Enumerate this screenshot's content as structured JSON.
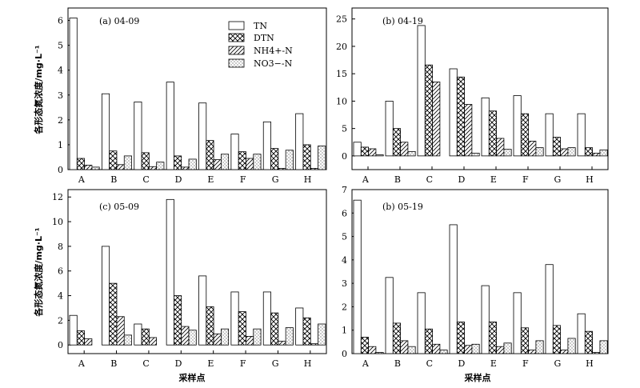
{
  "chart_data": [
    {
      "type": "bar",
      "title": "(a) 04-09",
      "categories": [
        "A",
        "B",
        "C",
        "D",
        "E",
        "F",
        "G",
        "H"
      ],
      "ylim": [
        0,
        6.5
      ],
      "yticks": [
        0,
        1,
        2,
        3,
        4,
        5,
        6
      ],
      "ylabel": "各形态氮浓度/mg·L⁻¹",
      "xlabel": "",
      "series": [
        {
          "name": "TN",
          "values": [
            6.1,
            3.05,
            2.72,
            3.52,
            2.68,
            1.43,
            1.92,
            2.25
          ]
        },
        {
          "name": "DTN",
          "values": [
            0.45,
            0.75,
            0.68,
            0.55,
            1.17,
            0.72,
            0.85,
            1.0
          ]
        },
        {
          "name": "NH4+-N",
          "values": [
            0.18,
            0.2,
            0.12,
            0.1,
            0.4,
            0.45,
            0.05,
            0.05
          ]
        },
        {
          "name": "NO3−-N",
          "values": [
            0.1,
            0.55,
            0.3,
            0.42,
            0.62,
            0.62,
            0.78,
            0.95
          ]
        }
      ]
    },
    {
      "type": "bar",
      "title": "(b) 04-19",
      "categories": [
        "A",
        "B",
        "C",
        "D",
        "E",
        "F",
        "G",
        "H"
      ],
      "ylim": [
        -2.5,
        27
      ],
      "yticks": [
        0,
        5,
        10,
        15,
        20,
        25
      ],
      "ylabel": "",
      "xlabel": "",
      "series": [
        {
          "name": "TN",
          "values": [
            2.5,
            10.0,
            23.8,
            15.9,
            10.6,
            11.0,
            7.7,
            7.7
          ]
        },
        {
          "name": "DTN",
          "values": [
            1.6,
            5.0,
            16.6,
            14.4,
            8.2,
            7.7,
            3.4,
            1.5
          ]
        },
        {
          "name": "NH4+-N",
          "values": [
            1.3,
            2.5,
            13.5,
            9.4,
            3.2,
            2.7,
            1.3,
            0.5
          ]
        },
        {
          "name": "NO3−-N",
          "values": [
            0.2,
            0.8,
            0.0,
            0.5,
            1.2,
            1.5,
            1.5,
            1.1
          ]
        }
      ]
    },
    {
      "type": "bar",
      "title": "(c) 05-09",
      "categories": [
        "A",
        "B",
        "C",
        "D",
        "E",
        "F",
        "G",
        "H"
      ],
      "ylim": [
        -0.7,
        12.6
      ],
      "yticks": [
        0,
        2,
        4,
        6,
        8,
        10,
        12
      ],
      "ylabel": "各形态氮浓度/mg·L⁻¹",
      "xlabel": "采样点",
      "series": [
        {
          "name": "TN",
          "values": [
            2.4,
            8.0,
            1.7,
            11.8,
            5.6,
            4.3,
            4.3,
            3.0
          ]
        },
        {
          "name": "DTN",
          "values": [
            1.15,
            5.0,
            1.3,
            4.0,
            3.1,
            2.7,
            2.6,
            2.2
          ]
        },
        {
          "name": "NH4+-N",
          "values": [
            0.5,
            2.3,
            0.6,
            1.5,
            0.9,
            0.7,
            0.3,
            0.1
          ]
        },
        {
          "name": "NO3−-N",
          "values": [
            0.0,
            0.8,
            0.0,
            1.2,
            1.3,
            1.3,
            1.4,
            1.7
          ]
        }
      ]
    },
    {
      "type": "bar",
      "title": "(b) 05-19",
      "categories": [
        "A",
        "B",
        "C",
        "D",
        "E",
        "F",
        "G",
        "H"
      ],
      "ylim": [
        0,
        7
      ],
      "yticks": [
        0,
        1,
        2,
        3,
        4,
        5,
        6,
        7
      ],
      "ylabel": "",
      "xlabel": "采样点",
      "series": [
        {
          "name": "TN",
          "values": [
            6.55,
            3.25,
            2.6,
            5.5,
            2.9,
            2.6,
            3.8,
            1.7
          ]
        },
        {
          "name": "DTN",
          "values": [
            0.7,
            1.3,
            1.05,
            1.35,
            1.35,
            1.1,
            1.2,
            0.95
          ]
        },
        {
          "name": "NH4+-N",
          "values": [
            0.3,
            0.55,
            0.4,
            0.35,
            0.3,
            0.15,
            0.15,
            0.05
          ]
        },
        {
          "name": "NO3−-N",
          "values": [
            0.05,
            0.3,
            0.15,
            0.4,
            0.45,
            0.55,
            0.65,
            0.55
          ]
        }
      ]
    }
  ],
  "legend": {
    "items": [
      {
        "label": "TN",
        "pattern": "blank"
      },
      {
        "label": "DTN",
        "pattern": "crosshatch"
      },
      {
        "label": "NH4+-N",
        "pattern": "diagonal"
      },
      {
        "label": "NO3−-N",
        "pattern": "dots"
      }
    ]
  }
}
